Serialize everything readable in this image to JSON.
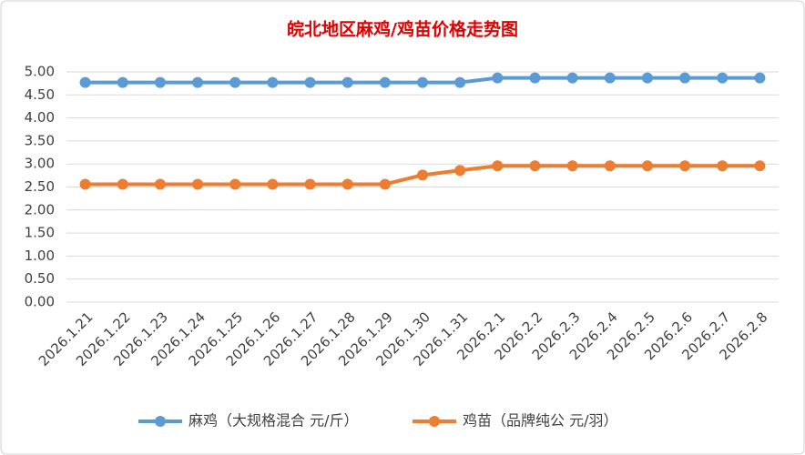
{
  "chart_data": {
    "type": "line",
    "title": "皖北地区麻鸡/鸡苗价格走势图",
    "categories": [
      "2026.1.21",
      "2026.1.22",
      "2026.1.23",
      "2026.1.24",
      "2026.1.25",
      "2026.1.26",
      "2026.1.27",
      "2026.1.28",
      "2026.1.29",
      "2026.1.30",
      "2026.1.31",
      "2026.2.1",
      "2026.2.2",
      "2026.2.3",
      "2026.2.4",
      "2026.2.5",
      "2026.2.6",
      "2026.2.7",
      "2026.2.8"
    ],
    "series": [
      {
        "name": "麻鸡（大规格混合 元/斤）",
        "color": "#5b9bd5",
        "values": [
          4.77,
          4.77,
          4.77,
          4.77,
          4.77,
          4.77,
          4.77,
          4.77,
          4.77,
          4.77,
          4.77,
          4.87,
          4.87,
          4.87,
          4.87,
          4.87,
          4.87,
          4.87,
          4.87
        ]
      },
      {
        "name": "鸡苗（品牌纯公 元/羽）",
        "color": "#ed7d31",
        "values": [
          2.56,
          2.56,
          2.56,
          2.56,
          2.56,
          2.56,
          2.56,
          2.56,
          2.56,
          2.76,
          2.86,
          2.96,
          2.96,
          2.96,
          2.96,
          2.96,
          2.96,
          2.96,
          2.96
        ]
      }
    ],
    "ylim": [
      0,
      5
    ],
    "yticks": [
      {
        "value": 0,
        "label": "0.00"
      },
      {
        "value": 0.5,
        "label": "0.50"
      },
      {
        "value": 1,
        "label": "1.00"
      },
      {
        "value": 1.5,
        "label": "1.50"
      },
      {
        "value": 2,
        "label": "2.00"
      },
      {
        "value": 2.5,
        "label": "2.50"
      },
      {
        "value": 3,
        "label": "3.00"
      },
      {
        "value": 3.5,
        "label": "3.50"
      },
      {
        "value": 4,
        "label": "4.00"
      },
      {
        "value": 4.5,
        "label": "4.50"
      },
      {
        "value": 5,
        "label": "5.00"
      }
    ],
    "grid": true,
    "legend": "bottom"
  }
}
